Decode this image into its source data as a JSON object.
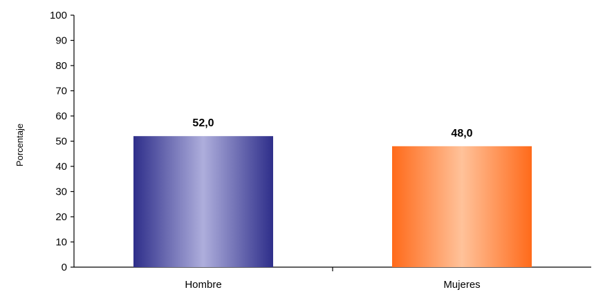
{
  "chart_data": {
    "type": "bar",
    "title": "",
    "xlabel": "",
    "ylabel": "Porcentaje",
    "categories": [
      "Hombre",
      "Mujeres"
    ],
    "values": [
      52.0,
      48.0
    ],
    "value_labels": [
      "52,0",
      "48,0"
    ],
    "ylim": [
      0,
      100
    ],
    "yticks": [
      0,
      10,
      20,
      30,
      40,
      50,
      60,
      70,
      80,
      90,
      100
    ],
    "grid": false,
    "legend": "none",
    "colors": {
      "Hombre": {
        "edge": "#2e2e8a",
        "center": "#aeaedc"
      },
      "Mujeres": {
        "edge": "#ff6a1a",
        "center": "#ffc29a"
      }
    }
  }
}
